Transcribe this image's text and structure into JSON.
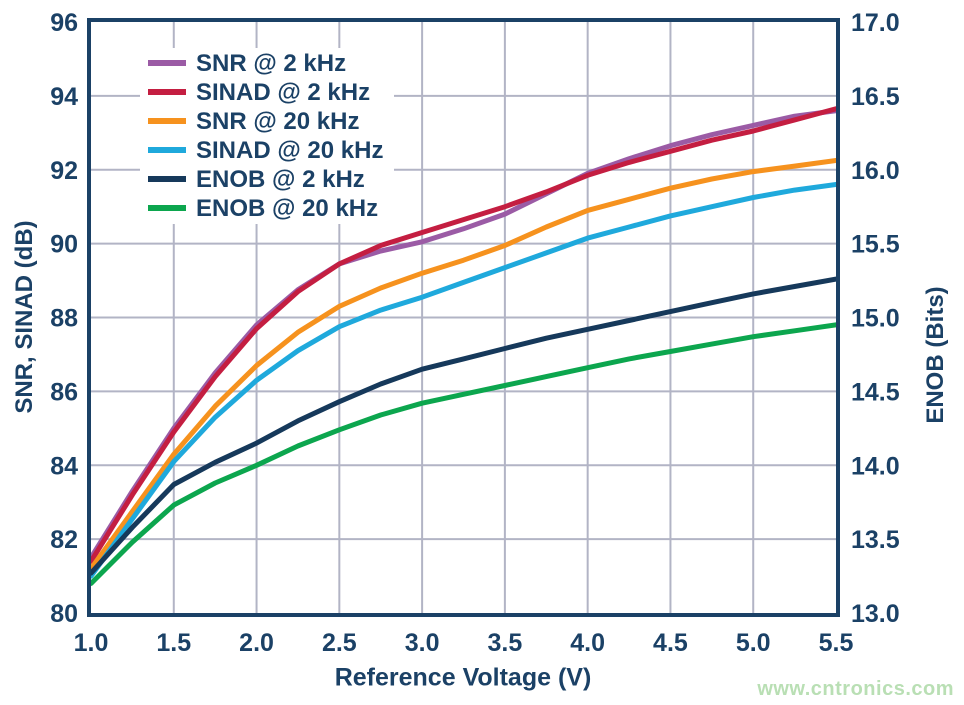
{
  "watermark": "www.cntronics.com",
  "colors": {
    "axis_text": "#1B4166",
    "plot_border": "#1B4166",
    "gridline": "#B2B4C5",
    "background": "#FFFFFF",
    "watermark": "#B9DFB4"
  },
  "chart_data": {
    "type": "line",
    "title": "",
    "xlabel": "Reference Voltage (V)",
    "ylabel_left": "SNR, SINAD (dB)",
    "ylabel_right": "ENOB (Bits)",
    "x_range": [
      1.0,
      5.5
    ],
    "y_left_range": [
      80,
      96
    ],
    "y_right_range": [
      13.0,
      17.0
    ],
    "grid": true,
    "legend_position": "top-left",
    "x_ticks": {
      "values": [
        1.0,
        1.5,
        2.0,
        2.5,
        3.0,
        3.5,
        4.0,
        4.5,
        5.0,
        5.5
      ],
      "labels": [
        "1.0",
        "1.5",
        "2.0",
        "2.5",
        "3.0",
        "3.5",
        "4.0",
        "4.5",
        "5.0",
        "5.5"
      ]
    },
    "y_left_ticks": {
      "values": [
        80,
        82,
        84,
        86,
        88,
        90,
        92,
        94,
        96
      ],
      "labels": [
        "80",
        "82",
        "84",
        "86",
        "88",
        "90",
        "92",
        "94",
        "96"
      ]
    },
    "y_right_ticks": {
      "values": [
        13.0,
        13.5,
        14.0,
        14.5,
        15.0,
        15.5,
        16.0,
        16.5,
        17.0
      ],
      "labels": [
        "13.0",
        "13.5",
        "14.0",
        "14.5",
        "15.0",
        "15.5",
        "16.0",
        "16.5",
        "17.0"
      ]
    },
    "x": [
      1.0,
      1.25,
      1.5,
      1.75,
      2.0,
      2.25,
      2.5,
      2.75,
      3.0,
      3.25,
      3.5,
      3.75,
      4.0,
      4.25,
      4.5,
      4.75,
      5.0,
      5.25,
      5.5
    ],
    "series": [
      {
        "name": "SNR @ 2 kHz",
        "color": "#9B5BA5",
        "axis": "left",
        "values": [
          81.5,
          83.3,
          85.0,
          86.5,
          87.8,
          88.75,
          89.45,
          89.8,
          90.05,
          90.4,
          90.8,
          91.35,
          91.9,
          92.3,
          92.65,
          92.95,
          93.2,
          93.45,
          93.6
        ]
      },
      {
        "name": "SINAD @ 2 kHz",
        "color": "#C41E41",
        "axis": "left",
        "values": [
          81.4,
          83.2,
          84.9,
          86.4,
          87.7,
          88.7,
          89.45,
          89.95,
          90.3,
          90.65,
          91.0,
          91.4,
          91.85,
          92.2,
          92.5,
          92.8,
          93.05,
          93.35,
          93.65
        ]
      },
      {
        "name": "SNR @ 20 kHz",
        "color": "#F6921E",
        "axis": "left",
        "values": [
          81.2,
          82.75,
          84.3,
          85.6,
          86.7,
          87.6,
          88.3,
          88.8,
          89.2,
          89.55,
          89.95,
          90.45,
          90.9,
          91.2,
          91.5,
          91.75,
          91.95,
          92.1,
          92.25
        ]
      },
      {
        "name": "SINAD @ 20 kHz",
        "color": "#1FA9DC",
        "axis": "left",
        "values": [
          81.0,
          82.55,
          84.1,
          85.3,
          86.3,
          87.1,
          87.75,
          88.2,
          88.55,
          88.95,
          89.35,
          89.75,
          90.15,
          90.45,
          90.75,
          91.0,
          91.25,
          91.45,
          91.6
        ]
      },
      {
        "name": "ENOB @ 2 kHz",
        "color": "#16395B",
        "axis": "right",
        "values": [
          13.27,
          13.58,
          13.87,
          14.02,
          14.15,
          14.3,
          14.43,
          14.55,
          14.65,
          14.72,
          14.79,
          14.86,
          14.92,
          14.98,
          15.04,
          15.1,
          15.16,
          15.21,
          15.26
        ]
      },
      {
        "name": "ENOB @ 20 kHz",
        "color": "#0CA64E",
        "axis": "right",
        "values": [
          13.2,
          13.48,
          13.73,
          13.88,
          14.0,
          14.13,
          14.24,
          14.34,
          14.42,
          14.48,
          14.54,
          14.6,
          14.66,
          14.72,
          14.77,
          14.82,
          14.87,
          14.91,
          14.95
        ]
      }
    ]
  }
}
